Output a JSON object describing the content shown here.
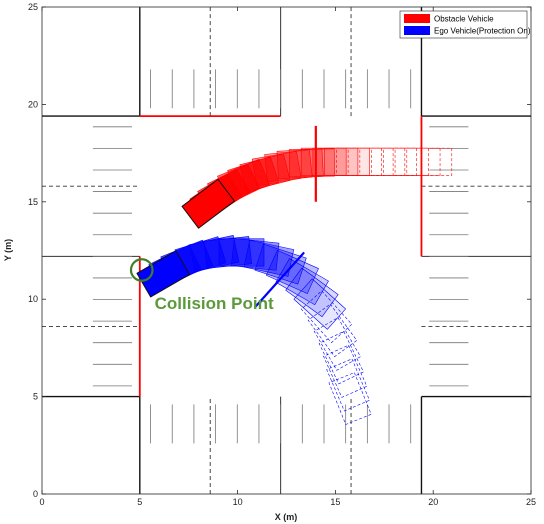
{
  "chart_data": {
    "type": "scene",
    "xlabel": "X (m)",
    "ylabel": "Y (m)",
    "xlim": [
      0,
      25
    ],
    "ylim": [
      0,
      25
    ],
    "xticks": [
      0,
      5,
      10,
      15,
      20,
      25
    ],
    "yticks": [
      0,
      5,
      10,
      15,
      20,
      25
    ],
    "grid": false,
    "legend_location": "top-right",
    "legend": [
      {
        "label": "Obstacle Vehicle",
        "color": "#ff0000"
      },
      {
        "label": "Ego Vehicle(Protection On)",
        "color": "#0000ff"
      }
    ],
    "road": {
      "intersection_x": [
        5,
        19.4
      ],
      "intersection_y": [
        5,
        19.4
      ],
      "dashed_lanes_x": [
        8.6,
        15.8
      ],
      "dashed_lanes_y": [
        8.6,
        15.8
      ],
      "red_boundaries": [
        {
          "x": [
            5,
            12.2
          ],
          "y": [
            19.4,
            19.4
          ]
        },
        {
          "x": [
            19.4,
            19.4
          ],
          "y": [
            12.2,
            19.4
          ]
        },
        {
          "x": [
            5,
            5
          ],
          "y": [
            5,
            12.2
          ]
        }
      ]
    },
    "series": [
      {
        "name": "Obstacle Vehicle",
        "color": "#ff0000",
        "vehicle_length": 2.3,
        "vehicle_width": 1.4,
        "path": [
          {
            "x": 8.5,
            "y": 14.9,
            "heading": 37
          },
          {
            "x": 8.9,
            "y": 15.2,
            "heading": 34
          },
          {
            "x": 9.3,
            "y": 15.5,
            "heading": 30
          },
          {
            "x": 9.8,
            "y": 15.8,
            "heading": 26
          },
          {
            "x": 10.3,
            "y": 16.1,
            "heading": 22
          },
          {
            "x": 10.8,
            "y": 16.3,
            "heading": 18
          },
          {
            "x": 11.4,
            "y": 16.5,
            "heading": 14
          },
          {
            "x": 12.0,
            "y": 16.7,
            "heading": 10
          },
          {
            "x": 12.6,
            "y": 16.85,
            "heading": 6
          },
          {
            "x": 13.2,
            "y": 16.95,
            "heading": 3
          },
          {
            "x": 13.8,
            "y": 17.0,
            "heading": 1
          },
          {
            "x": 14.4,
            "y": 17.05,
            "heading": 0
          },
          {
            "x": 15.0,
            "y": 17.05,
            "heading": 0
          },
          {
            "x": 15.6,
            "y": 17.05,
            "heading": 0
          },
          {
            "x": 16.2,
            "y": 17.05,
            "heading": 0
          },
          {
            "x": 16.8,
            "y": 17.05,
            "heading": 0
          },
          {
            "x": 17.4,
            "y": 17.05,
            "heading": 0
          },
          {
            "x": 18.0,
            "y": 17.05,
            "heading": 0
          },
          {
            "x": 18.6,
            "y": 17.05,
            "heading": 0
          },
          {
            "x": 19.2,
            "y": 17.05,
            "heading": 0
          },
          {
            "x": 19.8,
            "y": 17.05,
            "heading": 0
          }
        ],
        "marker": {
          "x": [
            14.0,
            14.0
          ],
          "y": [
            15.0,
            18.9
          ]
        }
      },
      {
        "name": "Ego Vehicle(Protection On)",
        "color": "#0000ff",
        "vehicle_length": 2.3,
        "vehicle_width": 1.4,
        "path": [
          {
            "x": 6.2,
            "y": 11.3,
            "heading": 30
          },
          {
            "x": 6.8,
            "y": 11.65,
            "heading": 26
          },
          {
            "x": 7.4,
            "y": 11.95,
            "heading": 22
          },
          {
            "x": 8.1,
            "y": 12.2,
            "heading": 17
          },
          {
            "x": 8.8,
            "y": 12.35,
            "heading": 12
          },
          {
            "x": 9.5,
            "y": 12.4,
            "heading": 6
          },
          {
            "x": 10.2,
            "y": 12.4,
            "heading": 0
          },
          {
            "x": 10.9,
            "y": 12.3,
            "heading": -6
          },
          {
            "x": 11.6,
            "y": 12.1,
            "heading": -12
          },
          {
            "x": 12.2,
            "y": 11.8,
            "heading": -18
          },
          {
            "x": 12.8,
            "y": 11.4,
            "heading": -24
          },
          {
            "x": 13.3,
            "y": 10.9,
            "heading": -30
          },
          {
            "x": 13.8,
            "y": 10.35,
            "heading": -36
          },
          {
            "x": 14.2,
            "y": 9.75,
            "heading": -42
          },
          {
            "x": 14.55,
            "y": 9.1,
            "heading": -48
          },
          {
            "x": 14.85,
            "y": 8.4,
            "heading": -54
          },
          {
            "x": 15.1,
            "y": 7.7,
            "heading": -60
          },
          {
            "x": 15.3,
            "y": 7.0,
            "heading": -64
          },
          {
            "x": 15.5,
            "y": 6.3,
            "heading": -66
          },
          {
            "x": 15.65,
            "y": 5.6,
            "heading": -67
          },
          {
            "x": 15.75,
            "y": 4.9,
            "heading": -68
          }
        ],
        "marker": {
          "x": [
            10.9,
            13.4
          ],
          "y": [
            9.6,
            12.4
          ]
        }
      }
    ],
    "annotations": [
      {
        "text": "Collision Point",
        "x": 8.8,
        "y": 9.5,
        "color": "#5a9a3a"
      },
      {
        "type": "circle",
        "x": 5.1,
        "y": 11.5,
        "r": 0.55,
        "color": "#3f7f2a"
      }
    ]
  }
}
